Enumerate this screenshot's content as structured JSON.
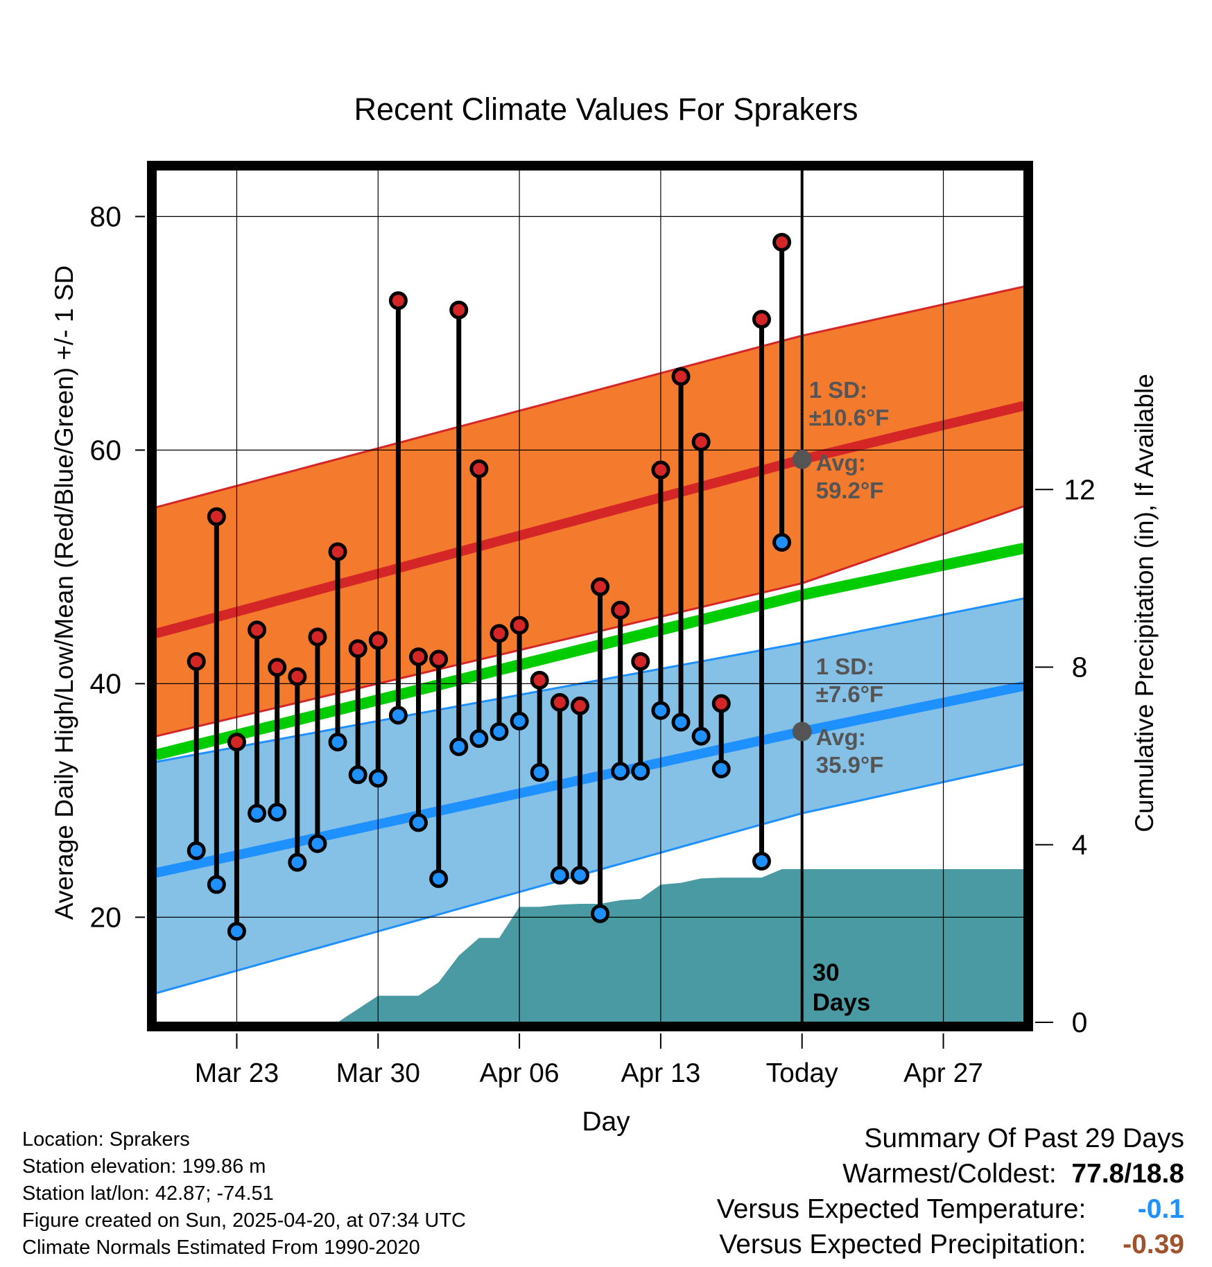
{
  "chart_data": {
    "type": "range",
    "title": "Recent Climate Values For Sprakers",
    "xlabel": "Day",
    "ylabel": "Average Daily High/Low/Mean (Red/Blue/Green) +/- 1 SD",
    "y2label": "Cumulative Precipitation (in), If Available",
    "x_range": [
      "2025-03-19",
      "2025-05-01"
    ],
    "x_ticks": [
      {
        "date": "2025-03-23",
        "label": "Mar 23"
      },
      {
        "date": "2025-03-30",
        "label": "Mar 30"
      },
      {
        "date": "2025-04-06",
        "label": "Apr 06"
      },
      {
        "date": "2025-04-13",
        "label": "Apr 13"
      },
      {
        "date": "2025-04-20",
        "label": "Today"
      },
      {
        "date": "2025-04-27",
        "label": "Apr 27"
      }
    ],
    "today": "2025-04-20",
    "ylim": [
      11,
      84
    ],
    "y_ticks": [
      20,
      40,
      60,
      80
    ],
    "y2lim": [
      0,
      19.2
    ],
    "y2_ticks": [
      0,
      4,
      8,
      12
    ],
    "grid": true,
    "normals": {
      "dates": [
        "2025-03-19",
        "2025-04-20",
        "2025-05-01"
      ],
      "high_mean": [
        44.3,
        59.2,
        63.8
      ],
      "high_upper": [
        55.1,
        69.8,
        74.0
      ],
      "high_lower": [
        35.5,
        48.6,
        55.2
      ],
      "mean": [
        33.9,
        47.6,
        51.6
      ],
      "low_mean": [
        23.8,
        35.9,
        39.8
      ],
      "low_upper": [
        33.3,
        43.5,
        47.3
      ],
      "low_lower": [
        13.5,
        28.9,
        33.1
      ]
    },
    "series": [
      {
        "name": "High",
        "dates": [
          "2025-03-21",
          "2025-03-22",
          "2025-03-23",
          "2025-03-24",
          "2025-03-25",
          "2025-03-26",
          "2025-03-27",
          "2025-03-28",
          "2025-03-29",
          "2025-03-30",
          "2025-03-31",
          "2025-04-01",
          "2025-04-02",
          "2025-04-03",
          "2025-04-04",
          "2025-04-05",
          "2025-04-06",
          "2025-04-07",
          "2025-04-08",
          "2025-04-09",
          "2025-04-10",
          "2025-04-11",
          "2025-04-12",
          "2025-04-13",
          "2025-04-14",
          "2025-04-15",
          "2025-04-16",
          "2025-04-18",
          "2025-04-19"
        ],
        "values": [
          41.9,
          54.3,
          35.0,
          44.6,
          41.4,
          40.6,
          44.0,
          51.3,
          43.0,
          43.7,
          72.8,
          42.3,
          42.1,
          72.0,
          58.4,
          44.3,
          45.0,
          40.3,
          38.4,
          38.1,
          48.3,
          46.3,
          41.9,
          58.3,
          66.3,
          60.7,
          38.3,
          71.2,
          77.8
        ]
      },
      {
        "name": "Low",
        "dates": [
          "2025-03-21",
          "2025-03-22",
          "2025-03-23",
          "2025-03-24",
          "2025-03-25",
          "2025-03-26",
          "2025-03-27",
          "2025-03-28",
          "2025-03-29",
          "2025-03-30",
          "2025-03-31",
          "2025-04-01",
          "2025-04-02",
          "2025-04-03",
          "2025-04-04",
          "2025-04-05",
          "2025-04-06",
          "2025-04-07",
          "2025-04-08",
          "2025-04-09",
          "2025-04-10",
          "2025-04-11",
          "2025-04-12",
          "2025-04-13",
          "2025-04-14",
          "2025-04-15",
          "2025-04-16",
          "2025-04-18",
          "2025-04-19"
        ],
        "values": [
          25.7,
          22.8,
          18.8,
          28.9,
          29.0,
          24.7,
          26.3,
          35.0,
          32.2,
          31.9,
          37.3,
          28.1,
          23.3,
          34.6,
          35.3,
          35.9,
          36.8,
          32.4,
          23.6,
          23.6,
          20.3,
          32.5,
          32.5,
          37.7,
          36.7,
          35.5,
          32.7,
          24.8,
          52.1
        ]
      },
      {
        "name": "Cumulative Precipitation",
        "dates": [
          "2025-03-19",
          "2025-03-27",
          "2025-03-28",
          "2025-03-29",
          "2025-03-30",
          "2025-03-31",
          "2025-04-01",
          "2025-04-02",
          "2025-04-03",
          "2025-04-04",
          "2025-04-05",
          "2025-04-06",
          "2025-04-07",
          "2025-04-08",
          "2025-04-09",
          "2025-04-10",
          "2025-04-11",
          "2025-04-12",
          "2025-04-13",
          "2025-04-14",
          "2025-04-15",
          "2025-04-16",
          "2025-04-17",
          "2025-04-18",
          "2025-04-19",
          "2025-05-01"
        ],
        "values": [
          0,
          0,
          0,
          0.3,
          0.6,
          0.6,
          0.6,
          0.9,
          1.5,
          1.9,
          1.9,
          2.6,
          2.6,
          2.65,
          2.67,
          2.67,
          2.75,
          2.78,
          3.1,
          3.14,
          3.24,
          3.26,
          3.26,
          3.26,
          3.45,
          3.45
        ]
      }
    ],
    "annotations": {
      "high_sd_label": "1 SD:",
      "high_sd_value": "±10.6°F",
      "high_avg_label": "Avg:",
      "high_avg_value": "59.2°F",
      "low_sd_label": "1 SD:",
      "low_sd_value": "±7.6°F",
      "low_avg_label": "Avg:",
      "low_avg_value": "35.9°F",
      "days_count": "30",
      "days_label": "Days"
    },
    "colors": {
      "high_band": "#f47a2e",
      "high_line": "#d42626",
      "low_band": "#85c1e6",
      "low_line": "#1e90ff",
      "mean_line": "#00cc00",
      "precip": "#4a9aa4",
      "annotation": "#555555",
      "high_marker": "#d42626",
      "low_marker": "#1e90ff"
    }
  },
  "footer": {
    "location": "Location: Sprakers",
    "elevation": "Station elevation: 199.86 m",
    "latlon": "Station lat/lon: 42.87; -74.51",
    "created": "Figure created on Sun, 2025-04-20, at 07:34 UTC",
    "normals": "Climate Normals Estimated From 1990-2020"
  },
  "summary": {
    "title": "Summary Of Past 29 Days",
    "warmest_label": "Warmest/Coldest:",
    "warmest_value": "77.8/18.8",
    "temp_label": "Versus Expected Temperature:",
    "temp_value": "-0.1",
    "precip_label": "Versus Expected Precipitation:",
    "precip_value": "-0.39",
    "temp_color": "#1e90ff",
    "precip_color": "#a0522d"
  }
}
